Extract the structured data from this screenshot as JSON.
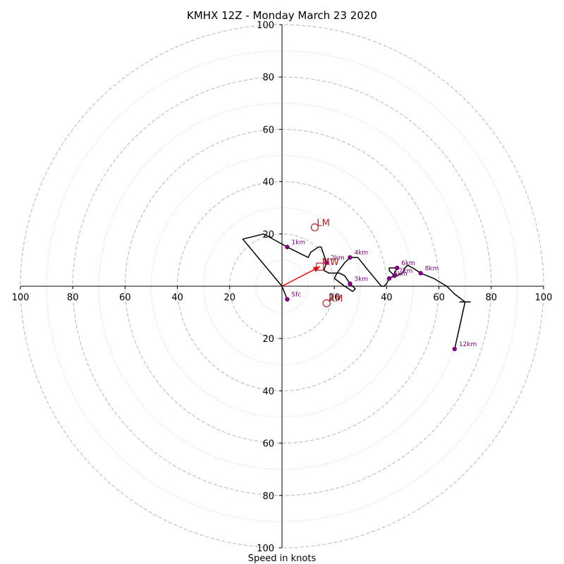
{
  "chart_data": {
    "type": "line",
    "title": "KMHX 12Z - Monday March 23 2020",
    "xlabel": "Speed in knots",
    "ylabel": "",
    "xlim": [
      -100,
      100
    ],
    "ylim": [
      -100,
      100
    ],
    "grid": true,
    "rings": {
      "major": [
        20,
        40,
        60,
        80,
        100
      ],
      "minor": [
        10,
        30,
        50,
        70,
        90
      ]
    },
    "tick_labels": {
      "x": [
        "100",
        "80",
        "60",
        "40",
        "20",
        "20",
        "40",
        "60",
        "80",
        "100"
      ],
      "y": [
        "100",
        "80",
        "60",
        "40",
        "20",
        "20",
        "40",
        "60",
        "80",
        "100"
      ]
    },
    "colors": {
      "hodograph": "#000000",
      "height_markers": "#800080",
      "motion_markers": "#b22222",
      "mean_wind_vector": "#ff0000",
      "grid": "#bbbbbb"
    },
    "series": [
      {
        "values": [
          [
            0,
            0
          ],
          [
            2,
            -5
          ],
          [
            0,
            0
          ],
          [
            -15,
            18
          ],
          [
            -7,
            20
          ],
          [
            2,
            15
          ],
          [
            10,
            11
          ],
          [
            11,
            13
          ],
          [
            14,
            15
          ],
          [
            15,
            15
          ],
          [
            16,
            12
          ],
          [
            17,
            9
          ],
          [
            16,
            6
          ],
          [
            18,
            5
          ],
          [
            22,
            5
          ],
          [
            24,
            4
          ],
          [
            26,
            1
          ],
          [
            27,
            0
          ],
          [
            28,
            -1
          ],
          [
            27,
            -2
          ],
          [
            24,
            0
          ],
          [
            20,
            3
          ],
          [
            21,
            5
          ],
          [
            24,
            9
          ],
          [
            26,
            11
          ],
          [
            29,
            11
          ],
          [
            33,
            6
          ],
          [
            38,
            0
          ],
          [
            39,
            0
          ],
          [
            40,
            1
          ],
          [
            41,
            3
          ],
          [
            43,
            4
          ],
          [
            41,
            6
          ],
          [
            41,
            7
          ],
          [
            44,
            7
          ],
          [
            43,
            5
          ],
          [
            44,
            4
          ],
          [
            46,
            5
          ],
          [
            47,
            7
          ],
          [
            48,
            8
          ],
          [
            50,
            7
          ],
          [
            53,
            5
          ],
          [
            58,
            3
          ],
          [
            63,
            0
          ],
          [
            66,
            -3
          ],
          [
            70,
            -6
          ],
          [
            72,
            -6
          ],
          [
            68,
            -6
          ],
          [
            70,
            -6
          ],
          [
            68,
            -15
          ],
          [
            66,
            -24
          ]
        ]
      }
    ],
    "height_markers": [
      {
        "label": "Sfc",
        "u": 2,
        "v": -5
      },
      {
        "label": "1km",
        "u": 2,
        "v": 15
      },
      {
        "label": "2km",
        "u": 17,
        "v": 9
      },
      {
        "label": "3km",
        "u": 26,
        "v": 1
      },
      {
        "label": "4km",
        "u": 26,
        "v": 11
      },
      {
        "label": "5km",
        "u": 41,
        "v": 3
      },
      {
        "label": "6km",
        "u": 44,
        "v": 7
      },
      {
        "label": "7km",
        "u": 43,
        "v": 4
      },
      {
        "label": "8km",
        "u": 53,
        "v": 5
      },
      {
        "label": "12km",
        "u": 66,
        "v": -24
      }
    ],
    "storm_motions": [
      {
        "label": "LM",
        "symbol": "circle",
        "u": 12.5,
        "v": 22.5
      },
      {
        "label": "RM",
        "symbol": "circle",
        "u": 17,
        "v": -6.5
      },
      {
        "label": "MW",
        "symbol": "square",
        "u": 14.5,
        "v": 7.5
      }
    ],
    "mean_wind_arrow": {
      "u": 14.5,
      "v": 7.5
    }
  }
}
